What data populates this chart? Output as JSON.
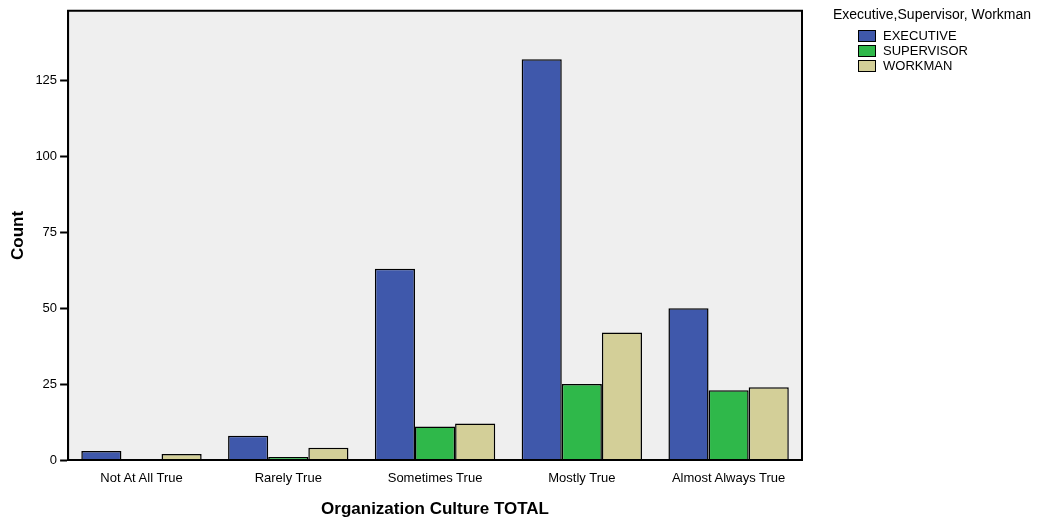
{
  "chart_data": {
    "type": "bar",
    "xlabel": "Organization Culture TOTAL",
    "ylabel": "Count",
    "legend_title": "Executive,Supervisor, Workman",
    "categories": [
      "Not At All True",
      "Rarely True",
      "Sometimes True",
      "Mostly True",
      "Almost Always True"
    ],
    "series": [
      {
        "name": "EXECUTIVE",
        "color": "#3f58ab",
        "values": [
          3,
          8,
          63,
          132,
          50
        ]
      },
      {
        "name": "SUPERVISOR",
        "color": "#2fb84a",
        "values": [
          0,
          1,
          11,
          25,
          23
        ]
      },
      {
        "name": "WORKMAN",
        "color": "#d3cf98",
        "values": [
          2,
          4,
          12,
          42,
          24
        ]
      }
    ],
    "ylim": [
      0,
      148
    ],
    "yticks": [
      0,
      25,
      50,
      75,
      100,
      125
    ],
    "grid": false,
    "legend": "top right"
  }
}
